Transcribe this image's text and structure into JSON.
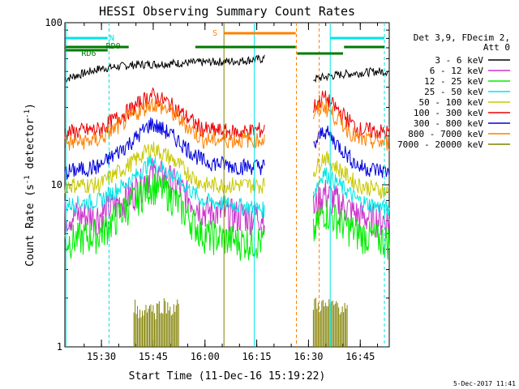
{
  "chart_data": {
    "type": "line",
    "title": "HESSI Observing Summary Count Rates",
    "xlabel": "Start Time (11-Dec-16 15:19:22)",
    "ylabel_main": "Count Rate (s",
    "ylabel_sup": "-1",
    "ylabel_mid": " detector",
    "ylabel_sup2": "-1",
    "ylabel_end": ")",
    "yscale": "log",
    "ylim": [
      1,
      100
    ],
    "xlim_minutes": [
      0,
      94
    ],
    "x_ticks": [
      {
        "label": "15:30",
        "m": 10.6
      },
      {
        "label": "15:45",
        "m": 25.6
      },
      {
        "label": "16:00",
        "m": 40.6
      },
      {
        "label": "16:15",
        "m": 55.6
      },
      {
        "label": "16:30",
        "m": 70.6
      },
      {
        "label": "16:45",
        "m": 85.6
      }
    ],
    "y_ticks": [
      {
        "label": "1",
        "v": 1
      },
      {
        "label": "10",
        "v": 10
      },
      {
        "label": "100",
        "v": 100
      }
    ],
    "legend_header": [
      "Det 3,9, FDecim 2,",
      "Att 0"
    ],
    "legend_position": "right",
    "series": [
      {
        "name": "3 - 6 keV",
        "color": "#000000",
        "x": [
          0,
          10,
          20,
          30,
          40,
          50,
          58,
          72,
          80,
          90,
          94
        ],
        "y": [
          45,
          52,
          55,
          56,
          57,
          58,
          60,
          45,
          48,
          50,
          50
        ]
      },
      {
        "name": "6 - 12 keV",
        "color": "#cc33cc",
        "x": [
          0,
          10,
          20,
          25,
          30,
          40,
          50,
          58,
          72,
          75,
          85,
          94
        ],
        "y": [
          6.5,
          6.5,
          9,
          12,
          11,
          7,
          6.5,
          6.5,
          7,
          9,
          6.5,
          6
        ]
      },
      {
        "name": "12 - 25 keV",
        "color": "#00ee00",
        "x": [
          0,
          10,
          20,
          25,
          30,
          40,
          50,
          58,
          72,
          75,
          85,
          94
        ],
        "y": [
          4.5,
          5,
          8,
          10,
          9,
          5,
          4.5,
          4.5,
          5,
          7,
          5,
          4.5
        ]
      },
      {
        "name": "25 - 50 keV",
        "color": "#00e5e5",
        "x": [
          0,
          10,
          20,
          25,
          30,
          40,
          50,
          58,
          72,
          75,
          85,
          94
        ],
        "y": [
          7.5,
          8,
          11,
          14,
          12,
          8,
          7.5,
          7,
          9,
          12,
          8,
          7
        ]
      },
      {
        "name": "50 - 100 keV",
        "color": "#c8c800",
        "x": [
          0,
          10,
          20,
          25,
          30,
          40,
          50,
          58,
          72,
          75,
          85,
          94
        ],
        "y": [
          10,
          10,
          14,
          17,
          15,
          10,
          10,
          10,
          12,
          15,
          10,
          9
        ]
      },
      {
        "name": "100 - 300 keV",
        "color": "#ee0000",
        "x": [
          0,
          10,
          20,
          25,
          30,
          40,
          50,
          58,
          72,
          75,
          85,
          94
        ],
        "y": [
          21,
          22,
          30,
          36,
          32,
          22,
          21,
          22,
          30,
          35,
          22,
          21
        ]
      },
      {
        "name": "300 - 800 keV",
        "color": "#0000dd",
        "x": [
          0,
          10,
          20,
          25,
          30,
          40,
          50,
          58,
          72,
          75,
          85,
          94
        ],
        "y": [
          12,
          13,
          19,
          24,
          21,
          14,
          13,
          13,
          17,
          22,
          13,
          12
        ]
      },
      {
        "name": "800 - 7000 keV",
        "color": "#ff8000",
        "x": [
          0,
          10,
          20,
          25,
          30,
          40,
          50,
          58,
          72,
          75,
          85,
          94
        ],
        "y": [
          18,
          19,
          27,
          32,
          29,
          19,
          19,
          19,
          27,
          31,
          19,
          18
        ]
      },
      {
        "name": "7000 - 20000 keV",
        "color": "#808000",
        "x": [
          20,
          22,
          24,
          26,
          28,
          30,
          73,
          76,
          79,
          82
        ],
        "y": [
          1.9,
          1.6,
          1.9,
          1.7,
          1.9,
          1.8,
          1.9,
          1.8,
          1.9,
          1.7
        ]
      }
    ],
    "annotations": {
      "N": {
        "label": "N",
        "color": "#00e5e5"
      },
      "RD0": {
        "label": "RD0",
        "color": "#007a00"
      },
      "RD6": {
        "label": "RD6",
        "color": "#007a00"
      },
      "S": {
        "label": "S",
        "color": "#ff8000"
      }
    },
    "timestamp": "5-Dec-2017 11:41"
  }
}
